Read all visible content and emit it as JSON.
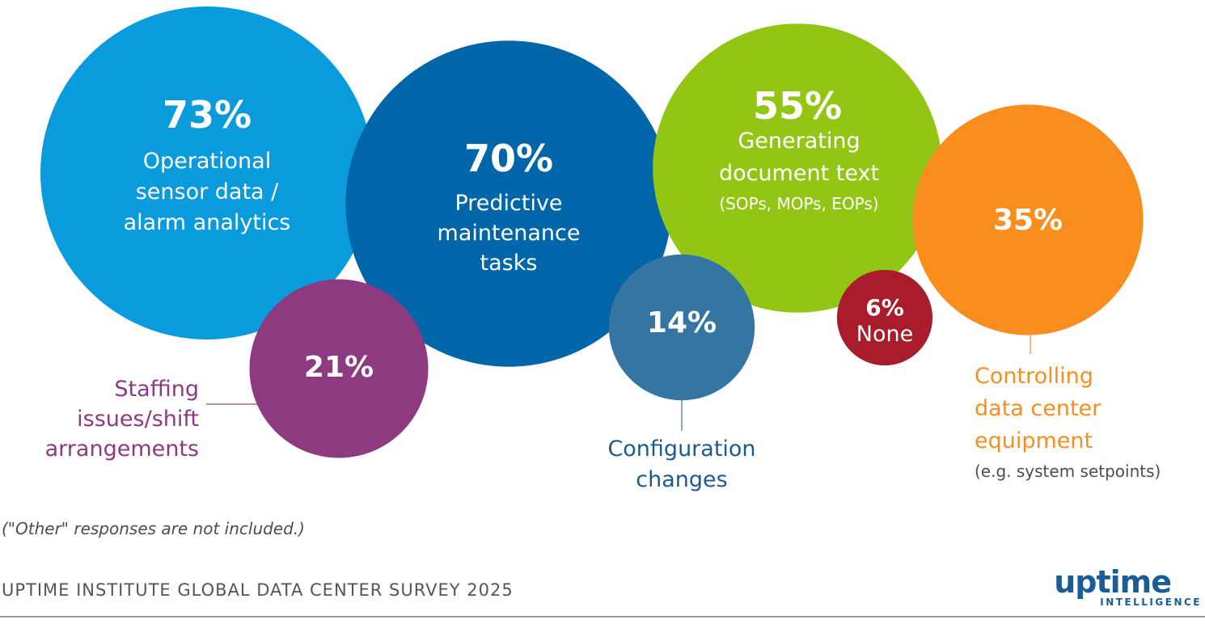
{
  "chart_data": {
    "type": "bubble",
    "unit": "%",
    "categories": [
      {
        "id": "operational",
        "value": 73,
        "label_lines": [
          "Operational",
          "sensor data /",
          "alarm analytics"
        ],
        "note": "",
        "color": "#0a9bdc",
        "label_color": "#ffffff",
        "label_placement": "inside"
      },
      {
        "id": "predictive",
        "value": 70,
        "label_lines": [
          "Predictive",
          "maintenance",
          "tasks"
        ],
        "note": "",
        "color": "#0066aa",
        "label_color": "#ffffff",
        "label_placement": "inside"
      },
      {
        "id": "document",
        "value": 55,
        "label_lines": [
          "Generating",
          "document text"
        ],
        "note": "(SOPs, MOPs, EOPs)",
        "color": "#93c614",
        "label_color": "#ffffff",
        "label_placement": "inside"
      },
      {
        "id": "controlling",
        "value": 35,
        "label_lines": [
          "Controlling",
          "data center",
          "equipment"
        ],
        "note": "(e.g. system setpoints)",
        "color": "#f98e1e",
        "label_color": "#f98e1e",
        "label_placement": "below"
      },
      {
        "id": "staffing",
        "value": 21,
        "label_lines": [
          "Staffing",
          "issues/shift",
          "arrangements"
        ],
        "note": "",
        "color": "#8e3a80",
        "label_color": "#8e3a80",
        "label_placement": "left"
      },
      {
        "id": "configuration",
        "value": 14,
        "label_lines": [
          "Configuration",
          "changes"
        ],
        "note": "",
        "color": "#3475a2",
        "label_color": "#1c5c8c",
        "label_placement": "below"
      },
      {
        "id": "none",
        "value": 6,
        "label_lines": [
          "None"
        ],
        "note": "",
        "color": "#a91c2c",
        "label_color": "#ffffff",
        "label_placement": "inside"
      }
    ]
  },
  "footnote": "(\"Other\" responses are not included.)",
  "source": "UPTIME INSTITUTE GLOBAL DATA CENTER SURVEY 2025",
  "logo": {
    "word": "uptime",
    "sub": "INTELLIGENCE"
  }
}
